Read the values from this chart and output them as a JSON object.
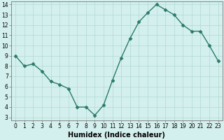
{
  "x": [
    0,
    1,
    2,
    3,
    4,
    5,
    6,
    7,
    8,
    9,
    10,
    11,
    12,
    13,
    14,
    15,
    16,
    17,
    18,
    19,
    20,
    21,
    22,
    23
  ],
  "y": [
    9,
    8,
    8.2,
    7.5,
    6.5,
    6.2,
    5.8,
    4.0,
    4.0,
    3.2,
    4.2,
    6.6,
    8.8,
    10.7,
    12.3,
    13.2,
    14.0,
    13.5,
    13.0,
    12.0,
    11.4,
    11.4,
    10.0,
    8.5
  ],
  "line_color": "#2a7a6a",
  "marker": "D",
  "marker_size": 2.5,
  "bg_color": "#d4f0ee",
  "grid_color": "#b0d8d4",
  "xlabel": "Humidex (Indice chaleur)",
  "ylim": [
    3,
    14
  ],
  "xlim": [
    -0.5,
    23.5
  ],
  "yticks": [
    3,
    4,
    5,
    6,
    7,
    8,
    9,
    10,
    11,
    12,
    13,
    14
  ],
  "xticks": [
    0,
    1,
    2,
    3,
    4,
    5,
    6,
    7,
    8,
    9,
    10,
    11,
    12,
    13,
    14,
    15,
    16,
    17,
    18,
    19,
    20,
    21,
    22,
    23
  ],
  "xtick_labels": [
    "0",
    "1",
    "2",
    "3",
    "4",
    "5",
    "6",
    "7",
    "8",
    "9",
    "10",
    "11",
    "12",
    "13",
    "14",
    "15",
    "16",
    "17",
    "18",
    "19",
    "20",
    "21",
    "22",
    "23"
  ],
  "tick_fontsize": 5.5,
  "xlabel_fontsize": 7,
  "line_width": 1.0
}
